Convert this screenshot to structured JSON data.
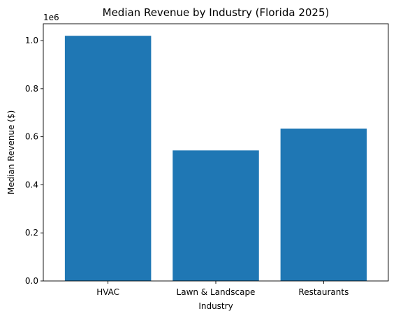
{
  "chart_data": {
    "type": "bar",
    "title": "Median Revenue by Industry (Florida 2025)",
    "xlabel": "Industry",
    "ylabel": "Median Revenue ($)",
    "y_offset_label": "1e6",
    "categories": [
      "HVAC",
      "Lawn & Landscape",
      "Restaurants"
    ],
    "values": [
      1020000,
      543000,
      634000
    ],
    "ylim": [
      0,
      1070000
    ],
    "yticks": [
      0,
      200000,
      400000,
      600000,
      800000,
      1000000
    ],
    "ytick_labels": [
      "0.0",
      "0.2",
      "0.4",
      "0.6",
      "0.8",
      "1.0"
    ],
    "bar_color": "#1f77b4",
    "grid": false,
    "legend": false
  }
}
